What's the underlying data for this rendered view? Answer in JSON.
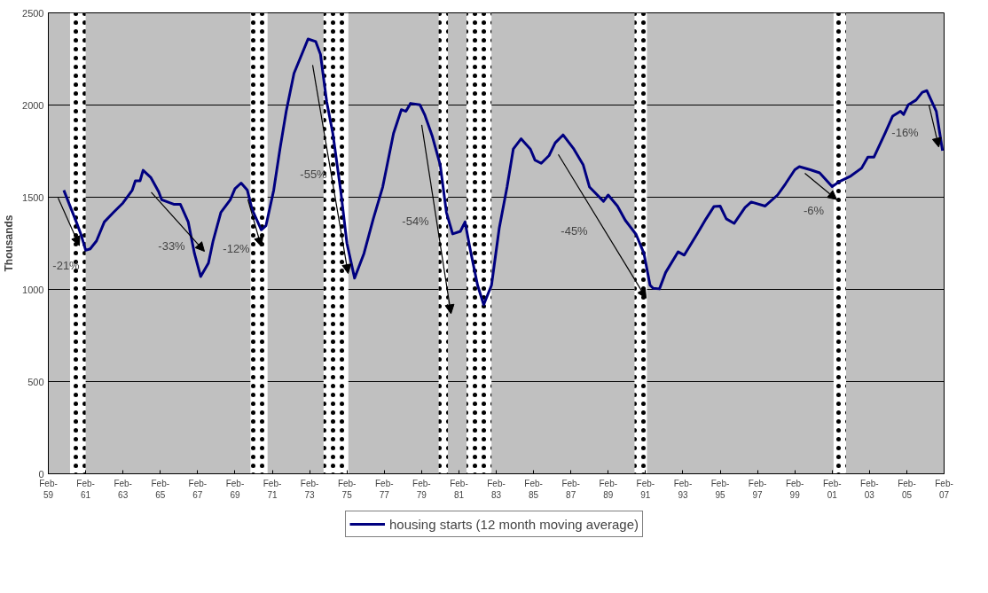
{
  "chart_data": {
    "type": "line",
    "ylabel": "Thousands",
    "xlim": [
      "1959-02",
      "2007-02"
    ],
    "xticks": [
      {
        "value": "1959-02",
        "label": "Feb-\n59"
      },
      {
        "value": "1961-02",
        "label": "Feb-\n61"
      },
      {
        "value": "1963-02",
        "label": "Feb-\n63"
      },
      {
        "value": "1965-02",
        "label": "Feb-\n65"
      },
      {
        "value": "1967-02",
        "label": "Feb-\n67"
      },
      {
        "value": "1969-02",
        "label": "Feb-\n69"
      },
      {
        "value": "1971-02",
        "label": "Feb-\n71"
      },
      {
        "value": "1973-02",
        "label": "Feb-\n73"
      },
      {
        "value": "1975-02",
        "label": "Feb-\n75"
      },
      {
        "value": "1977-02",
        "label": "Feb-\n77"
      },
      {
        "value": "1979-02",
        "label": "Feb-\n79"
      },
      {
        "value": "1981-02",
        "label": "Feb-\n81"
      },
      {
        "value": "1983-02",
        "label": "Feb-\n83"
      },
      {
        "value": "1985-02",
        "label": "Feb-\n85"
      },
      {
        "value": "1987-02",
        "label": "Feb-\n87"
      },
      {
        "value": "1989-02",
        "label": "Feb-\n89"
      },
      {
        "value": "1991-02",
        "label": "Feb-\n91"
      },
      {
        "value": "1993-02",
        "label": "Feb-\n93"
      },
      {
        "value": "1995-02",
        "label": "Feb-\n95"
      },
      {
        "value": "1997-02",
        "label": "Feb-\n97"
      },
      {
        "value": "1999-02",
        "label": "Feb-\n99"
      },
      {
        "value": "2001-02",
        "label": "Feb-\n01"
      },
      {
        "value": "2003-02",
        "label": "Feb-\n03"
      },
      {
        "value": "2005-02",
        "label": "Feb-\n05"
      },
      {
        "value": "2007-02",
        "label": "Feb-\n07"
      }
    ],
    "ylim": [
      0,
      2500
    ],
    "yticks": [
      0,
      500,
      1000,
      1500,
      2000,
      2500
    ],
    "grid": "y",
    "legend": "bottom",
    "x": [
      "1959-12",
      "1960-08",
      "1960-11",
      "1961-02",
      "1961-05",
      "1961-09",
      "1962-02",
      "1962-08",
      "1963-02",
      "1963-08",
      "1963-10",
      "1964-01",
      "1964-03",
      "1964-08",
      "1965-01",
      "1965-03",
      "1965-11",
      "1966-03",
      "1966-08",
      "1966-12",
      "1967-04",
      "1967-09",
      "1967-12",
      "1968-05",
      "1968-11",
      "1969-02",
      "1969-06",
      "1969-10",
      "1970-01",
      "1970-07",
      "1970-10",
      "1971-03",
      "1971-07",
      "1971-11",
      "1972-04",
      "1972-09",
      "1973-01",
      "1973-06",
      "1973-09",
      "1974-01",
      "1974-05",
      "1974-10",
      "1975-02",
      "1975-07",
      "1976-01",
      "1976-07",
      "1977-01",
      "1977-08",
      "1978-01",
      "1978-04",
      "1978-07",
      "1979-01",
      "1979-04",
      "1979-09",
      "1980-02",
      "1980-06",
      "1980-10",
      "1981-03",
      "1981-06",
      "1981-09",
      "1982-02",
      "1982-06",
      "1982-11",
      "1983-04",
      "1983-09",
      "1984-01",
      "1984-06",
      "1984-12",
      "1985-03",
      "1985-07",
      "1985-12",
      "1986-04",
      "1986-09",
      "1987-04",
      "1987-10",
      "1988-02",
      "1988-11",
      "1989-02",
      "1989-08",
      "1990-01",
      "1990-08",
      "1991-01",
      "1991-05",
      "1991-07",
      "1991-11",
      "1992-03",
      "1992-11",
      "1993-03",
      "1993-11",
      "1994-05",
      "1994-10",
      "1995-02",
      "1995-06",
      "1995-11",
      "1996-06",
      "1996-10",
      "1997-07",
      "1998-03",
      "1998-08",
      "1999-02",
      "1999-05",
      "1999-12",
      "2000-06",
      "2001-02",
      "2001-07",
      "2002-02",
      "2002-09",
      "2003-01",
      "2003-05",
      "2003-12",
      "2004-05",
      "2004-10",
      "2004-12",
      "2005-03",
      "2005-08",
      "2005-12",
      "2006-03",
      "2006-09",
      "2007-01"
    ],
    "series": [
      {
        "name": "housing starts (12 month moving average)",
        "color": "#000080",
        "values": [
          1538,
          1366,
          1298,
          1212,
          1220,
          1263,
          1366,
          1418,
          1469,
          1538,
          1589,
          1589,
          1646,
          1606,
          1529,
          1486,
          1461,
          1461,
          1366,
          1195,
          1070,
          1143,
          1263,
          1418,
          1486,
          1546,
          1577,
          1538,
          1435,
          1323,
          1346,
          1538,
          1761,
          1966,
          2172,
          2275,
          2358,
          2344,
          2275,
          2018,
          1846,
          1538,
          1250,
          1061,
          1195,
          1383,
          1555,
          1846,
          1975,
          1966,
          2009,
          2001,
          1949,
          1829,
          1675,
          1418,
          1301,
          1315,
          1366,
          1229,
          1023,
          917,
          1023,
          1332,
          1555,
          1761,
          1817,
          1761,
          1701,
          1684,
          1726,
          1795,
          1838,
          1761,
          1675,
          1555,
          1478,
          1512,
          1452,
          1375,
          1298,
          1195,
          1023,
          1006,
          1003,
          1092,
          1204,
          1186,
          1298,
          1383,
          1449,
          1452,
          1383,
          1358,
          1444,
          1474,
          1452,
          1512,
          1572,
          1649,
          1666,
          1649,
          1632,
          1558,
          1586,
          1615,
          1658,
          1718,
          1718,
          1846,
          1940,
          1966,
          1949,
          2001,
          2027,
          2069,
          2078,
          1966,
          1752
        ]
      }
    ],
    "bands": [
      {
        "axis": "x",
        "from": "1960-04",
        "to": "1961-02",
        "color": "#ffffff"
      },
      {
        "axis": "x",
        "from": "1969-12",
        "to": "1970-11",
        "color": "#ffffff"
      },
      {
        "axis": "x",
        "from": "1973-11",
        "to": "1975-03",
        "color": "#ffffff"
      },
      {
        "axis": "x",
        "from": "1980-01",
        "to": "1980-07",
        "color": "#ffffff"
      },
      {
        "axis": "x",
        "from": "1981-07",
        "to": "1982-11",
        "color": "#ffffff"
      },
      {
        "axis": "x",
        "from": "1990-07",
        "to": "1991-03",
        "color": "#ffffff"
      },
      {
        "axis": "x",
        "from": "2001-03",
        "to": "2001-11",
        "color": "#ffffff"
      }
    ],
    "annotations": [
      "-21%",
      "-33%",
      "-12%",
      "-55%",
      "-54%",
      "-45%",
      "-6%",
      "-16%"
    ]
  }
}
